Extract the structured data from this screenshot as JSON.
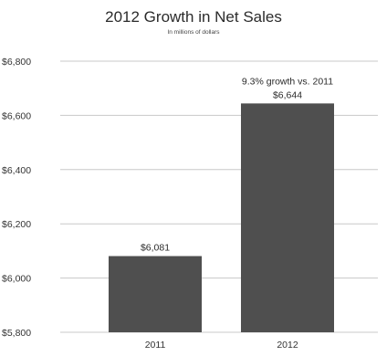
{
  "chart_data": {
    "type": "bar",
    "title": "2012 Growth in Net Sales",
    "subtitle": "In millions of dollars",
    "categories": [
      "2011",
      "2012"
    ],
    "values": [
      6081,
      6644
    ],
    "data_labels": [
      "$6,081",
      "$6,644"
    ],
    "annotations": [
      "",
      "9.3% growth vs. 2011"
    ],
    "ylim": [
      5800,
      6800
    ],
    "yticks": [
      5800,
      6000,
      6200,
      6400,
      6600,
      6800
    ],
    "ytick_labels": [
      "$5,800",
      "$6,000",
      "$6,200",
      "$6,400",
      "$6,600",
      "$6,800"
    ],
    "grid": true,
    "bar_color": "#4f4f4f",
    "grid_color": "#c8c8c8"
  }
}
